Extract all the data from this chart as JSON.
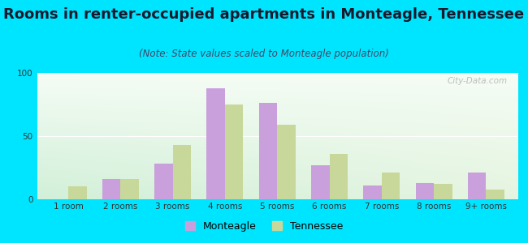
{
  "categories": [
    "1 room",
    "2 rooms",
    "3 rooms",
    "4 rooms",
    "5 rooms",
    "6 rooms",
    "7 rooms",
    "8 rooms",
    "9+ rooms"
  ],
  "monteagle": [
    0,
    16,
    28,
    88,
    76,
    27,
    11,
    13,
    21
  ],
  "tennessee": [
    10,
    16,
    43,
    75,
    59,
    36,
    21,
    12,
    8
  ],
  "monteagle_color": "#c9a0dc",
  "tennessee_color": "#c8d89a",
  "title": "Rooms in renter-occupied apartments in Monteagle, Tennessee",
  "subtitle": "(Note: State values scaled to Monteagle population)",
  "ylim": [
    0,
    100
  ],
  "yticks": [
    0,
    50,
    100
  ],
  "background_outer": "#00e5ff",
  "watermark": "City-Data.com",
  "legend_monteagle": "Monteagle",
  "legend_tennessee": "Tennessee",
  "bar_width": 0.35,
  "title_fontsize": 13,
  "subtitle_fontsize": 8.5,
  "tick_fontsize": 7.5
}
